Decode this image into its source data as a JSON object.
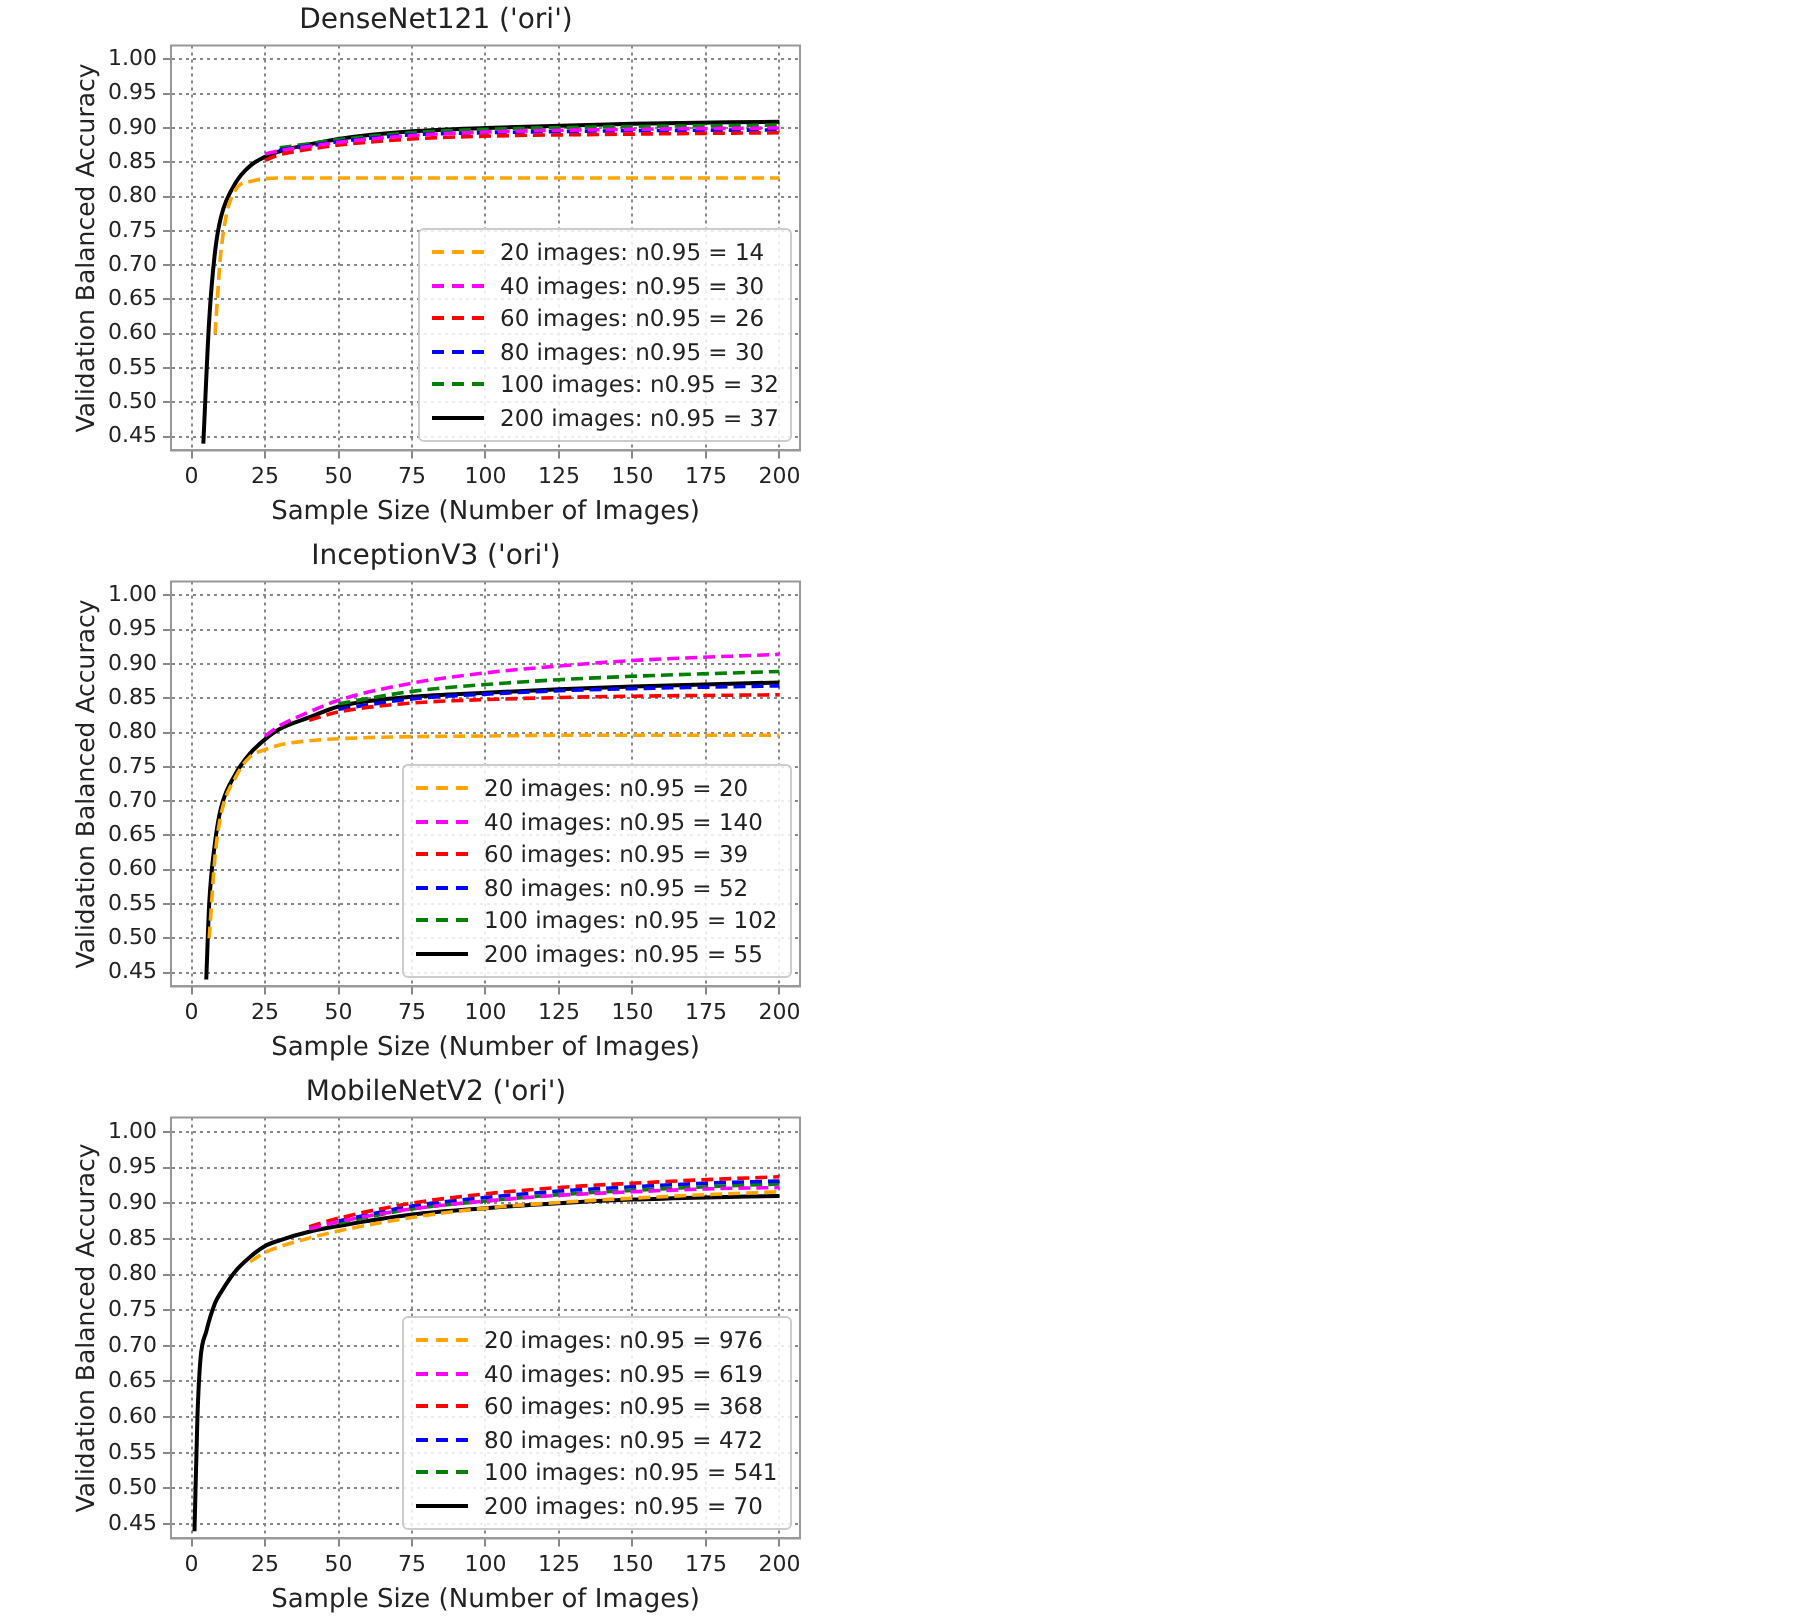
{
  "chart_data": [
    {
      "type": "line",
      "title": "DenseNet121 ('ori')",
      "xlabel": "Sample Size (Number of Images)",
      "ylabel": "Validation Balanced Accuracy",
      "x": [
        4,
        6,
        8,
        10,
        15,
        20,
        25,
        30,
        40,
        50,
        75,
        100,
        150,
        200
      ],
      "series": [
        {
          "name": "20 images: n0.95 = 14",
          "color": "#ffa500",
          "line_style": "dashed",
          "values": [
            null,
            null,
            0.6,
            0.72,
            0.81,
            0.822,
            0.826,
            0.827,
            0.827,
            0.827,
            0.827,
            0.827,
            0.827,
            0.827
          ]
        },
        {
          "name": "40 images: n0.95 = 30",
          "color": "#ff00ff",
          "line_style": "dashed",
          "values": [
            null,
            null,
            null,
            null,
            null,
            null,
            0.862,
            0.867,
            0.873,
            0.879,
            0.889,
            0.894,
            0.898,
            0.9
          ]
        },
        {
          "name": "60 images: n0.95 = 26",
          "color": "#ff0000",
          "line_style": "dashed",
          "values": [
            null,
            null,
            null,
            null,
            null,
            null,
            0.853,
            0.861,
            0.869,
            0.875,
            0.884,
            0.888,
            0.891,
            0.893
          ]
        },
        {
          "name": "80 images: n0.95 = 30",
          "color": "#0000ff",
          "line_style": "dashed",
          "values": [
            null,
            null,
            null,
            null,
            null,
            null,
            null,
            0.868,
            0.874,
            0.88,
            0.89,
            0.893,
            0.896,
            0.897
          ]
        },
        {
          "name": "100 images: n0.95 = 32",
          "color": "#008000",
          "line_style": "dashed",
          "values": [
            null,
            null,
            null,
            null,
            null,
            null,
            null,
            0.871,
            0.877,
            0.883,
            0.893,
            0.898,
            0.902,
            0.904
          ]
        },
        {
          "name": "200 images: n0.95 = 37",
          "color": "#000000",
          "line_style": "solid",
          "values": [
            0.44,
            0.62,
            0.72,
            0.77,
            0.82,
            0.845,
            0.858,
            0.866,
            0.876,
            0.884,
            0.895,
            0.9,
            0.906,
            0.909
          ]
        }
      ],
      "xlim": [
        -7,
        207
      ],
      "ylim": [
        0.43,
        1.02
      ],
      "xticks": [
        0,
        25,
        50,
        75,
        100,
        125,
        150,
        175,
        200
      ],
      "yticks": [
        0.45,
        {
          "value": 0.5,
          "label": "0.50"
        },
        0.55,
        {
          "value": 0.6,
          "label": "0.60"
        },
        0.65,
        {
          "value": 0.7,
          "label": "0.70"
        },
        0.75,
        {
          "value": 0.8,
          "label": "0.80"
        },
        0.85,
        {
          "value": 0.9,
          "label": "0.90"
        },
        0.95,
        {
          "value": 1,
          "label": "1.00"
        }
      ],
      "grid": true,
      "legend": "bottom right",
      "marker": "none"
    },
    {
      "type": "line",
      "title": "InceptionV3 ('ori')",
      "xlabel": "Sample Size (Number of Images)",
      "ylabel": "Validation Balanced Accuracy",
      "x": [
        5,
        6,
        8,
        10,
        15,
        20,
        25,
        30,
        40,
        50,
        75,
        100,
        125,
        150,
        200
      ],
      "series": [
        {
          "name": "20 images: n0.95 = 20",
          "color": "#ffa500",
          "line_style": "dashed",
          "values": [
            null,
            0.5,
            0.62,
            0.68,
            0.735,
            0.765,
            0.775,
            0.782,
            0.788,
            0.791,
            0.794,
            0.795,
            0.796,
            0.796,
            0.796
          ]
        },
        {
          "name": "40 images: n0.95 = 140",
          "color": "#ff00ff",
          "line_style": "dashed",
          "values": [
            null,
            null,
            null,
            null,
            null,
            null,
            0.795,
            0.81,
            0.83,
            0.847,
            0.872,
            0.887,
            0.897,
            0.905,
            0.914
          ]
        },
        {
          "name": "60 images: n0.95 = 39",
          "color": "#ff0000",
          "line_style": "dashed",
          "values": [
            null,
            null,
            null,
            null,
            null,
            null,
            null,
            null,
            0.818,
            0.83,
            0.843,
            0.848,
            0.851,
            0.853,
            0.855
          ]
        },
        {
          "name": "80 images: n0.95 = 52",
          "color": "#0000ff",
          "line_style": "dashed",
          "values": [
            null,
            null,
            null,
            null,
            null,
            null,
            null,
            null,
            null,
            0.834,
            0.849,
            0.856,
            0.861,
            0.864,
            0.868
          ]
        },
        {
          "name": "100 images: n0.95 = 102",
          "color": "#008000",
          "line_style": "dashed",
          "values": [
            null,
            null,
            null,
            null,
            null,
            null,
            null,
            null,
            null,
            0.842,
            0.86,
            0.87,
            0.877,
            0.882,
            0.889
          ]
        },
        {
          "name": "200 images: n0.95 = 55",
          "color": "#000000",
          "line_style": "solid",
          "values": [
            0.44,
            0.55,
            0.64,
            0.69,
            0.74,
            0.77,
            0.79,
            0.805,
            0.822,
            0.838,
            0.852,
            0.858,
            0.863,
            0.867,
            0.873
          ]
        }
      ],
      "xlim": [
        -7,
        207
      ],
      "ylim": [
        0.43,
        1.02
      ],
      "xticks": [
        0,
        25,
        50,
        75,
        100,
        125,
        150,
        175,
        200
      ],
      "yticks": [
        0.45,
        {
          "value": 0.5,
          "label": "0.50"
        },
        0.55,
        {
          "value": 0.6,
          "label": "0.60"
        },
        0.65,
        {
          "value": 0.7,
          "label": "0.70"
        },
        0.75,
        {
          "value": 0.8,
          "label": "0.80"
        },
        0.85,
        {
          "value": 0.9,
          "label": "0.90"
        },
        0.95,
        {
          "value": 1,
          "label": "1.00"
        }
      ],
      "grid": true,
      "legend": "bottom right",
      "marker": "none"
    },
    {
      "type": "line",
      "title": "MobileNetV2 ('ori')",
      "xlabel": "Sample Size (Number of Images)",
      "ylabel": "Validation Balanced Accuracy",
      "x": [
        1,
        2,
        3,
        5,
        8,
        10,
        15,
        20,
        25,
        30,
        40,
        50,
        75,
        100,
        125,
        150,
        175,
        200
      ],
      "series": [
        {
          "name": "20 images: n0.95 = 976",
          "color": "#ffa500",
          "line_style": "dashed",
          "values": [
            null,
            null,
            null,
            null,
            null,
            null,
            null,
            0.818,
            0.831,
            0.839,
            0.851,
            0.861,
            0.88,
            0.893,
            0.901,
            0.907,
            0.912,
            0.916
          ]
        },
        {
          "name": "40 images: n0.95 = 619",
          "color": "#ff00ff",
          "line_style": "dashed",
          "values": [
            null,
            null,
            null,
            null,
            null,
            null,
            null,
            null,
            null,
            null,
            0.864,
            0.874,
            0.892,
            0.903,
            0.911,
            0.916,
            0.92,
            0.922
          ]
        },
        {
          "name": "60 images: n0.95 = 368",
          "color": "#ff0000",
          "line_style": "dashed",
          "values": [
            null,
            null,
            null,
            null,
            null,
            null,
            null,
            null,
            null,
            null,
            0.867,
            0.879,
            0.9,
            0.913,
            0.922,
            0.928,
            0.933,
            0.937
          ]
        },
        {
          "name": "80 images: n0.95 = 472",
          "color": "#0000ff",
          "line_style": "dashed",
          "values": [
            null,
            null,
            null,
            null,
            null,
            null,
            null,
            null,
            null,
            null,
            null,
            0.875,
            0.896,
            0.908,
            0.917,
            0.923,
            0.928,
            0.931
          ]
        },
        {
          "name": "100 images: n0.95 = 541",
          "color": "#008000",
          "line_style": "dashed",
          "values": [
            null,
            null,
            null,
            null,
            null,
            null,
            null,
            null,
            null,
            null,
            null,
            0.872,
            0.892,
            0.903,
            0.912,
            0.918,
            0.923,
            0.927
          ]
        },
        {
          "name": "200 images: n0.95 = 70",
          "color": "#000000",
          "line_style": "solid",
          "values": [
            0.44,
            0.6,
            0.68,
            0.72,
            0.76,
            0.775,
            0.805,
            0.825,
            0.84,
            0.848,
            0.86,
            0.868,
            0.884,
            0.893,
            0.9,
            0.905,
            0.908,
            0.91
          ]
        }
      ],
      "xlim": [
        -7,
        207
      ],
      "ylim": [
        0.43,
        1.02
      ],
      "xticks": [
        0,
        25,
        50,
        75,
        100,
        125,
        150,
        175,
        200
      ],
      "yticks": [
        0.45,
        {
          "value": 0.5,
          "label": "0.50"
        },
        0.55,
        {
          "value": 0.6,
          "label": "0.60"
        },
        0.65,
        {
          "value": 0.7,
          "label": "0.70"
        },
        0.75,
        {
          "value": 0.8,
          "label": "0.80"
        },
        0.85,
        {
          "value": 0.9,
          "label": "0.90"
        },
        0.95,
        {
          "value": 1,
          "label": "1.00"
        }
      ],
      "grid": true,
      "legend": "bottom right",
      "marker": "none"
    }
  ]
}
